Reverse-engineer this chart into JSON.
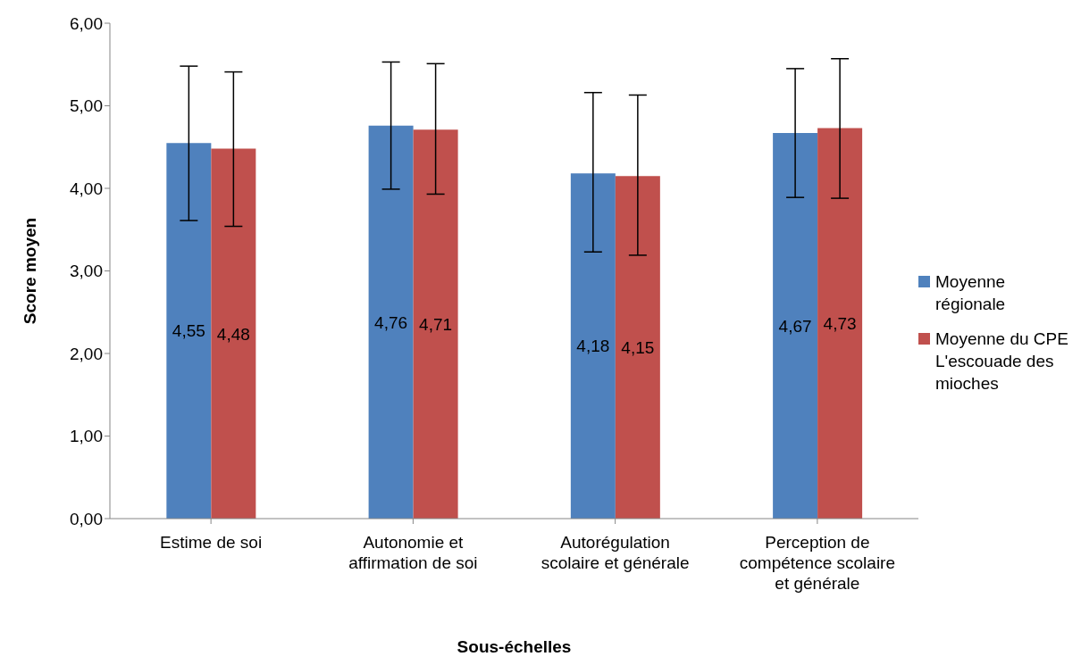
{
  "chart_data": {
    "type": "bar",
    "xlabel": "Sous-échelles",
    "ylabel": "Score moyen",
    "categories": [
      "Estime de soi",
      "Autonomie et affirmation de soi",
      "Autorégulation scolaire et générale",
      "Perception de compétence scolaire et générale"
    ],
    "series": [
      {
        "name": "Moyenne régionale",
        "color": "#4f81bd",
        "values": [
          4.55,
          4.76,
          4.18,
          4.67
        ],
        "value_labels": [
          "4,55",
          "4,76",
          "4,18",
          "4,67"
        ],
        "errors": [
          [
            3.61,
            5.48
          ],
          [
            3.99,
            5.53
          ],
          [
            3.23,
            5.16
          ],
          [
            3.89,
            5.45
          ]
        ]
      },
      {
        "name": "Moyenne du CPE L'escouade des mioches",
        "color": "#c0504d",
        "values": [
          4.48,
          4.71,
          4.15,
          4.73
        ],
        "value_labels": [
          "4,48",
          "4,71",
          "4,15",
          "4,73"
        ],
        "errors": [
          [
            3.54,
            5.41
          ],
          [
            3.93,
            5.51
          ],
          [
            3.19,
            5.13
          ],
          [
            3.88,
            5.57
          ]
        ]
      }
    ],
    "ylim": [
      0,
      6
    ],
    "yticks": [
      {
        "value": 0,
        "label": "0,00"
      },
      {
        "value": 1,
        "label": "1,00"
      },
      {
        "value": 2,
        "label": "2,00"
      },
      {
        "value": 3,
        "label": "3,00"
      },
      {
        "value": 4,
        "label": "4,00"
      },
      {
        "value": 5,
        "label": "5,00"
      },
      {
        "value": 6,
        "label": "6,00"
      }
    ],
    "legend": "right"
  }
}
